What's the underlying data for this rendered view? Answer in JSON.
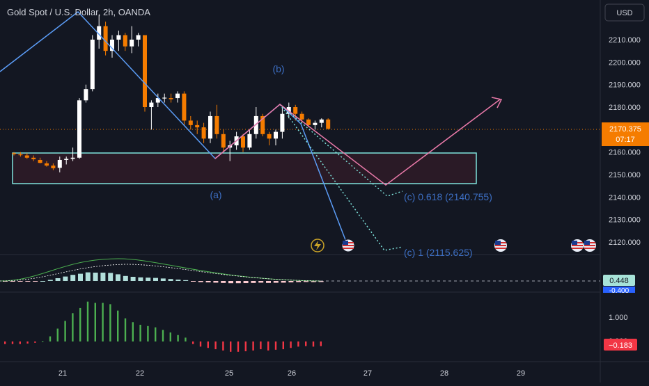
{
  "header": {
    "title": "Gold Spot / U.S. Dollar, 2h, OANDA",
    "currency_button": "USD"
  },
  "colors": {
    "up": "#ffffff",
    "down": "#f57c00",
    "zigzag_blue": "#5b9cf6",
    "zigzag_pink": "#e879a8",
    "box_border": "#7fe3dc",
    "box_fill": "#2a1a26",
    "label_blue": "#3d6fc4",
    "hist_up": "#4caf50",
    "hist_down": "#f23645",
    "price_badge": "#f57c00",
    "wave_label": "#2962ff"
  },
  "price_axis": {
    "ticks": [
      "2210.000",
      "2200.000",
      "2190.000",
      "2180.000",
      "2170.000",
      "2160.000",
      "2150.000",
      "2140.000",
      "2130.000",
      "2120.000"
    ],
    "current_price": "2170.375",
    "countdown": "07:17"
  },
  "time_axis": {
    "ticks": [
      "21",
      "22",
      "25",
      "26",
      "27",
      "28",
      "29"
    ]
  },
  "waves": {
    "a": "(a)",
    "b": "(b)",
    "c1": "(c) 0.618 (2140.755)",
    "c2": "(c) 1 (2115.625)"
  },
  "indicator1": {
    "value_top": "0.448",
    "value_bottom": "-0.400"
  },
  "indicator2": {
    "ticks": [
      "1.000",
      "0.000"
    ],
    "value": "−0.183"
  },
  "chart_data": {
    "type": "candlestick",
    "title": "Gold Spot / U.S. Dollar, 2h, OANDA",
    "x": [
      "21",
      "22",
      "25",
      "26",
      "27",
      "28",
      "29"
    ],
    "ylim": [
      2115,
      2222
    ],
    "current_price": 2170.375,
    "candles": [
      [
        2159.5,
        2160,
        2158.5,
        2159.2
      ],
      [
        2159,
        2160,
        2158,
        2158.6
      ],
      [
        2158.5,
        2159.5,
        2157,
        2157.5
      ],
      [
        2157.5,
        2158.5,
        2156,
        2156.8
      ],
      [
        2156.5,
        2157.5,
        2155,
        2155.2
      ],
      [
        2155,
        2156,
        2153.5,
        2154
      ],
      [
        2154,
        2155,
        2152,
        2152.8
      ],
      [
        2153,
        2158,
        2151,
        2156.5
      ],
      [
        2156.5,
        2158,
        2154.5,
        2157
      ],
      [
        2157,
        2162,
        2156,
        2157.5
      ],
      [
        2157.5,
        2184,
        2157,
        2183
      ],
      [
        2183,
        2190,
        2182,
        2188
      ],
      [
        2188,
        2212,
        2187,
        2210
      ],
      [
        2210,
        2221,
        2206,
        2216
      ],
      [
        2216,
        2218,
        2203,
        2205
      ],
      [
        2205,
        2212,
        2202,
        2210
      ],
      [
        2210,
        2214,
        2205,
        2212
      ],
      [
        2212,
        2213,
        2205,
        2207
      ],
      [
        2207,
        2216,
        2204,
        2210
      ],
      [
        2210,
        2213,
        2207,
        2212
      ],
      [
        2212,
        2211,
        2178,
        2180
      ],
      [
        2180,
        2183,
        2170,
        2182
      ],
      [
        2182,
        2186,
        2180,
        2184
      ],
      [
        2184,
        2186,
        2182,
        2184.2
      ],
      [
        2184,
        2186,
        2182,
        2183.5
      ],
      [
        2184,
        2187,
        2182,
        2186
      ],
      [
        2186,
        2187,
        2172,
        2174
      ],
      [
        2174,
        2176,
        2170,
        2172
      ],
      [
        2172,
        2174,
        2168,
        2171
      ],
      [
        2171,
        2173,
        2164,
        2166
      ],
      [
        2166,
        2178,
        2164,
        2176
      ],
      [
        2176,
        2181,
        2166,
        2168
      ],
      [
        2168,
        2170,
        2160,
        2162
      ],
      [
        2162,
        2165,
        2156,
        2163
      ],
      [
        2163,
        2169,
        2161,
        2167
      ],
      [
        2167,
        2168,
        2160,
        2162
      ],
      [
        2162,
        2170,
        2161,
        2168
      ],
      [
        2168,
        2180,
        2166,
        2176
      ],
      [
        2176,
        2177,
        2167,
        2168
      ],
      [
        2168,
        2169,
        2163,
        2166
      ],
      [
        2166,
        2170,
        2163,
        2169
      ],
      [
        2169,
        2180,
        2166,
        2177
      ],
      [
        2177,
        2182,
        2175,
        2180
      ],
      [
        2180,
        2181,
        2174,
        2177
      ],
      [
        2177,
        2178,
        2173,
        2174.5
      ],
      [
        2174.5,
        2175,
        2171,
        2172
      ],
      [
        2172,
        2174,
        2170,
        2173
      ],
      [
        2173,
        2175,
        2171,
        2174.5
      ],
      [
        2174.5,
        2175,
        2170,
        2170.4
      ]
    ],
    "zigzag_blue": [
      [
        2185,
        2221
      ],
      [
        2221,
        2157
      ],
      [
        2157,
        2182
      ],
      [
        2182,
        2140.755
      ],
      [
        2182,
        2115.625
      ]
    ],
    "zigzag_pink": [
      [
        2157,
        2182
      ],
      [
        2182,
        2146
      ],
      [
        2146,
        2187
      ]
    ],
    "range_box": [
      2146.5,
      2159.8
    ],
    "macd_histogram": [
      -0.1,
      -0.1,
      -0.1,
      -0.08,
      -0.05,
      0,
      0.2,
      0.5,
      0.8,
      1.1,
      1.3,
      1.55,
      1.5,
      1.5,
      1.45,
      1.2,
      0.9,
      0.75,
      0.65,
      0.6,
      0.55,
      0.45,
      0.35,
      0.25,
      0.15,
      -0.1,
      -0.2,
      -0.25,
      -0.3,
      -0.35,
      -0.4,
      -0.4,
      -0.38,
      -0.35,
      -0.3,
      -0.35,
      -0.32,
      -0.3,
      -0.25,
      -0.2,
      -0.18,
      -0.2,
      -0.18
    ]
  }
}
